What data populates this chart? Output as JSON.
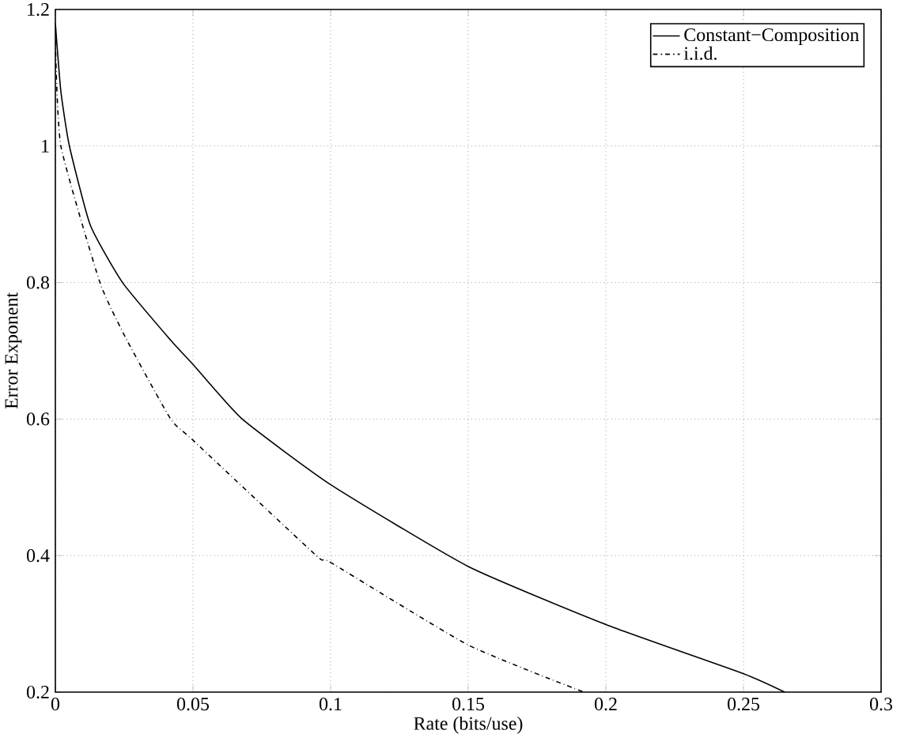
{
  "chart_data": {
    "type": "line",
    "xlabel": "Rate (bits/use)",
    "ylabel": "Error Exponent",
    "xlim": [
      0,
      0.3
    ],
    "ylim": [
      0.2,
      1.2
    ],
    "xticks": [
      0,
      0.05,
      0.1,
      0.15,
      0.2,
      0.25,
      0.3
    ],
    "yticks": [
      0.2,
      0.4,
      0.6,
      0.8,
      1,
      1.2
    ],
    "grid": true,
    "legend": "top right",
    "series": [
      {
        "name": "Constant−Composition",
        "color": "#000000",
        "line_style": "solid",
        "x": [
          0,
          0.002,
          0.0051,
          0.0127,
          0.0244,
          0.042,
          0.05,
          0.0679,
          0.1,
          0.15,
          0.2,
          0.25,
          0.265
        ],
        "values": [
          1.18,
          1.08,
          1.0,
          0.884,
          0.8,
          0.715,
          0.68,
          0.6,
          0.504,
          0.384,
          0.299,
          0.227,
          0.2
        ]
      },
      {
        "name": "i.i.d.",
        "color": "#000000",
        "line_style": "dashdot",
        "x": [
          0,
          0.002,
          0.0162,
          0.0262,
          0.0419,
          0.05,
          0.0948,
          0.1,
          0.15,
          0.192
        ],
        "values": [
          1.155,
          1.0,
          0.8,
          0.714,
          0.6,
          0.569,
          0.4,
          0.39,
          0.269,
          0.2
        ]
      }
    ]
  }
}
